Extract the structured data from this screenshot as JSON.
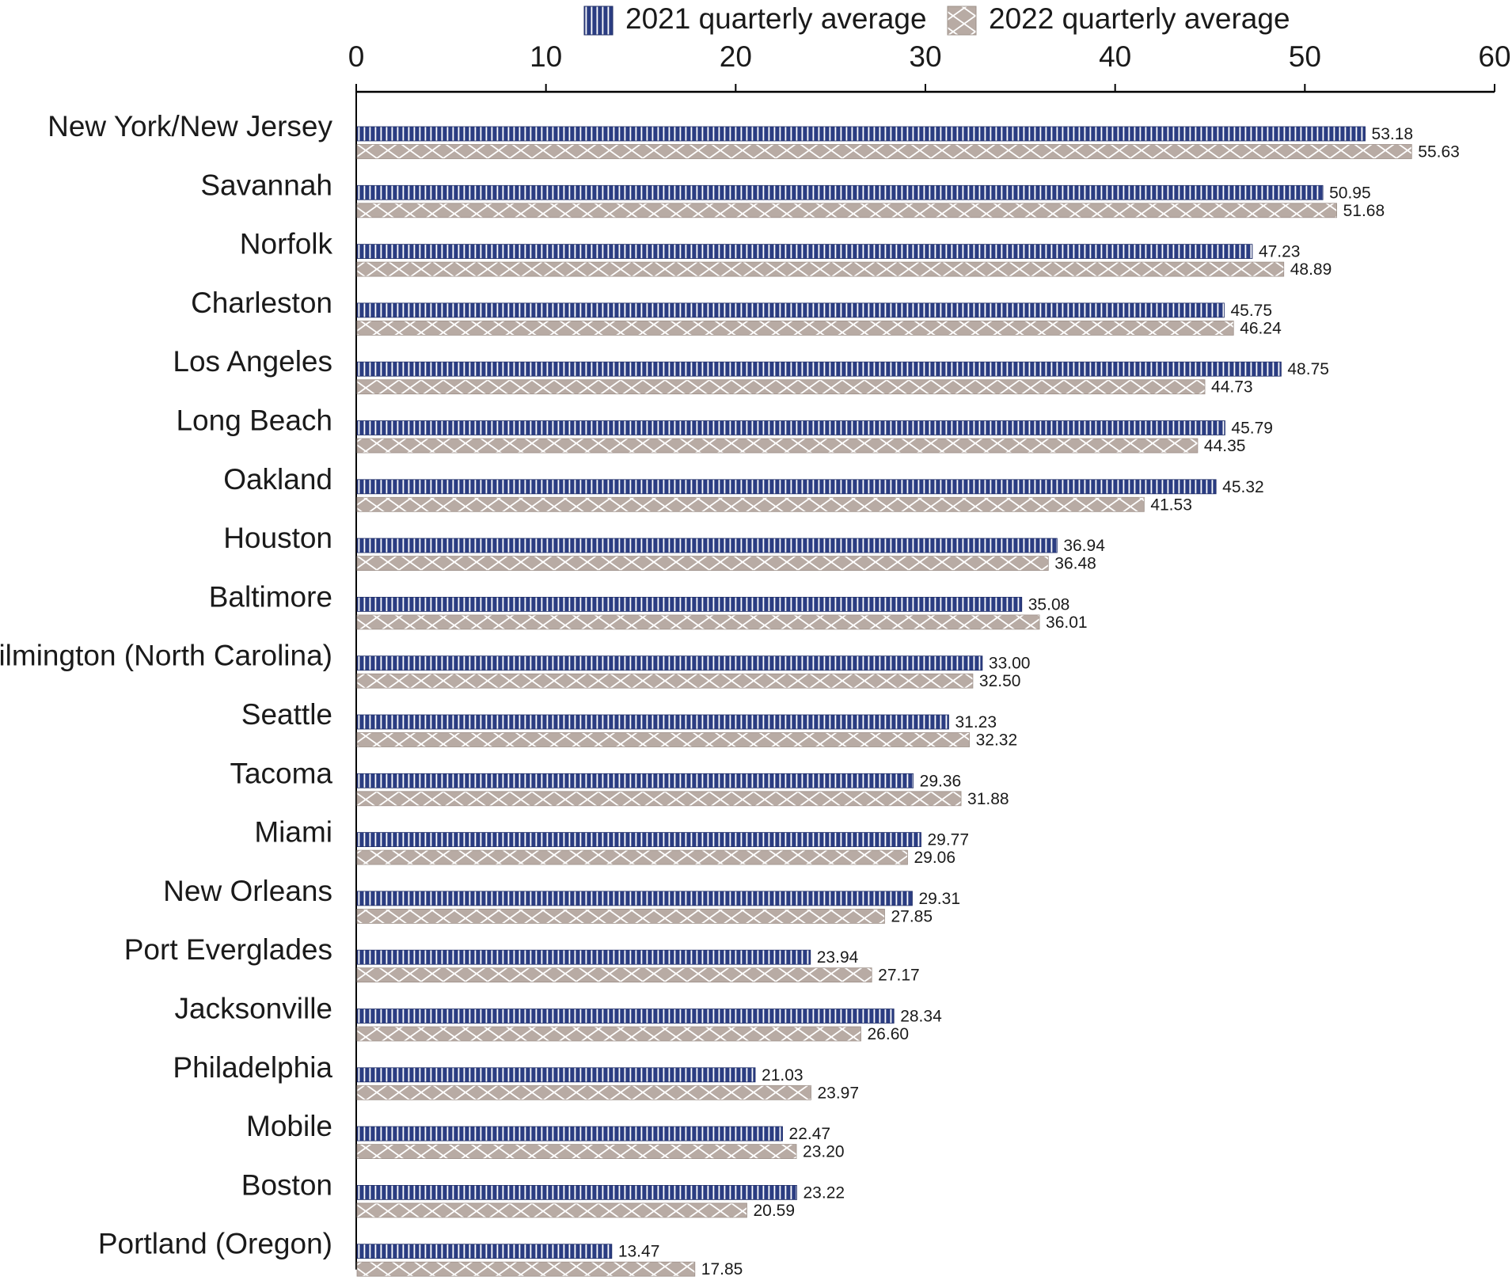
{
  "chart_data": {
    "type": "bar",
    "orientation": "horizontal",
    "categories": [
      "New York/New Jersey",
      "Savannah",
      "Norfolk",
      "Charleston",
      "Los Angeles",
      "Long Beach",
      "Oakland",
      "Houston",
      "Baltimore",
      "Wilmington (North Carolina)",
      "Seattle",
      "Tacoma",
      "Miami",
      "New Orleans",
      "Port Everglades",
      "Jacksonville",
      "Philadelphia",
      "Mobile",
      "Boston",
      "Portland (Oregon)"
    ],
    "series": [
      {
        "name": "2021 quarterly average",
        "color": "#2b3d82",
        "pattern": "vertical-stripes",
        "values": [
          53.18,
          50.95,
          47.23,
          45.75,
          48.75,
          45.79,
          45.32,
          36.94,
          35.08,
          33.0,
          31.23,
          29.36,
          29.77,
          29.31,
          23.94,
          28.34,
          21.03,
          22.47,
          23.22,
          13.47
        ],
        "labels": [
          "53.18",
          "50.95",
          "47.23",
          "45.75",
          "48.75",
          "45.79",
          "45.32",
          "36.94",
          "35.08",
          "33.00",
          "31.23",
          "29.36",
          "29.77",
          "29.31",
          "23.94",
          "28.34",
          "21.03",
          "22.47",
          "23.22",
          "13.47"
        ]
      },
      {
        "name": "2022 quarterly average",
        "color": "#b8aba4",
        "pattern": "crosshatch",
        "values": [
          55.63,
          51.68,
          48.89,
          46.24,
          44.73,
          44.35,
          41.53,
          36.48,
          36.01,
          32.5,
          32.32,
          31.88,
          29.06,
          27.85,
          27.17,
          26.6,
          23.97,
          23.2,
          20.59,
          17.85
        ],
        "labels": [
          "55.63",
          "51.68",
          "48.89",
          "46.24",
          "44.73",
          "44.35",
          "41.53",
          "36.48",
          "36.01",
          "32.50",
          "32.32",
          "31.88",
          "29.06",
          "27.85",
          "27.17",
          "26.60",
          "23.97",
          "23.20",
          "20.59",
          "17.85"
        ]
      }
    ],
    "xlim": [
      0,
      60
    ],
    "xticks": [
      0,
      10,
      20,
      30,
      40,
      50,
      60
    ],
    "xtick_labels": [
      "0",
      "10",
      "20",
      "30",
      "40",
      "50",
      "60"
    ],
    "axis_position": "top",
    "grid": false,
    "legend_position": "top"
  }
}
